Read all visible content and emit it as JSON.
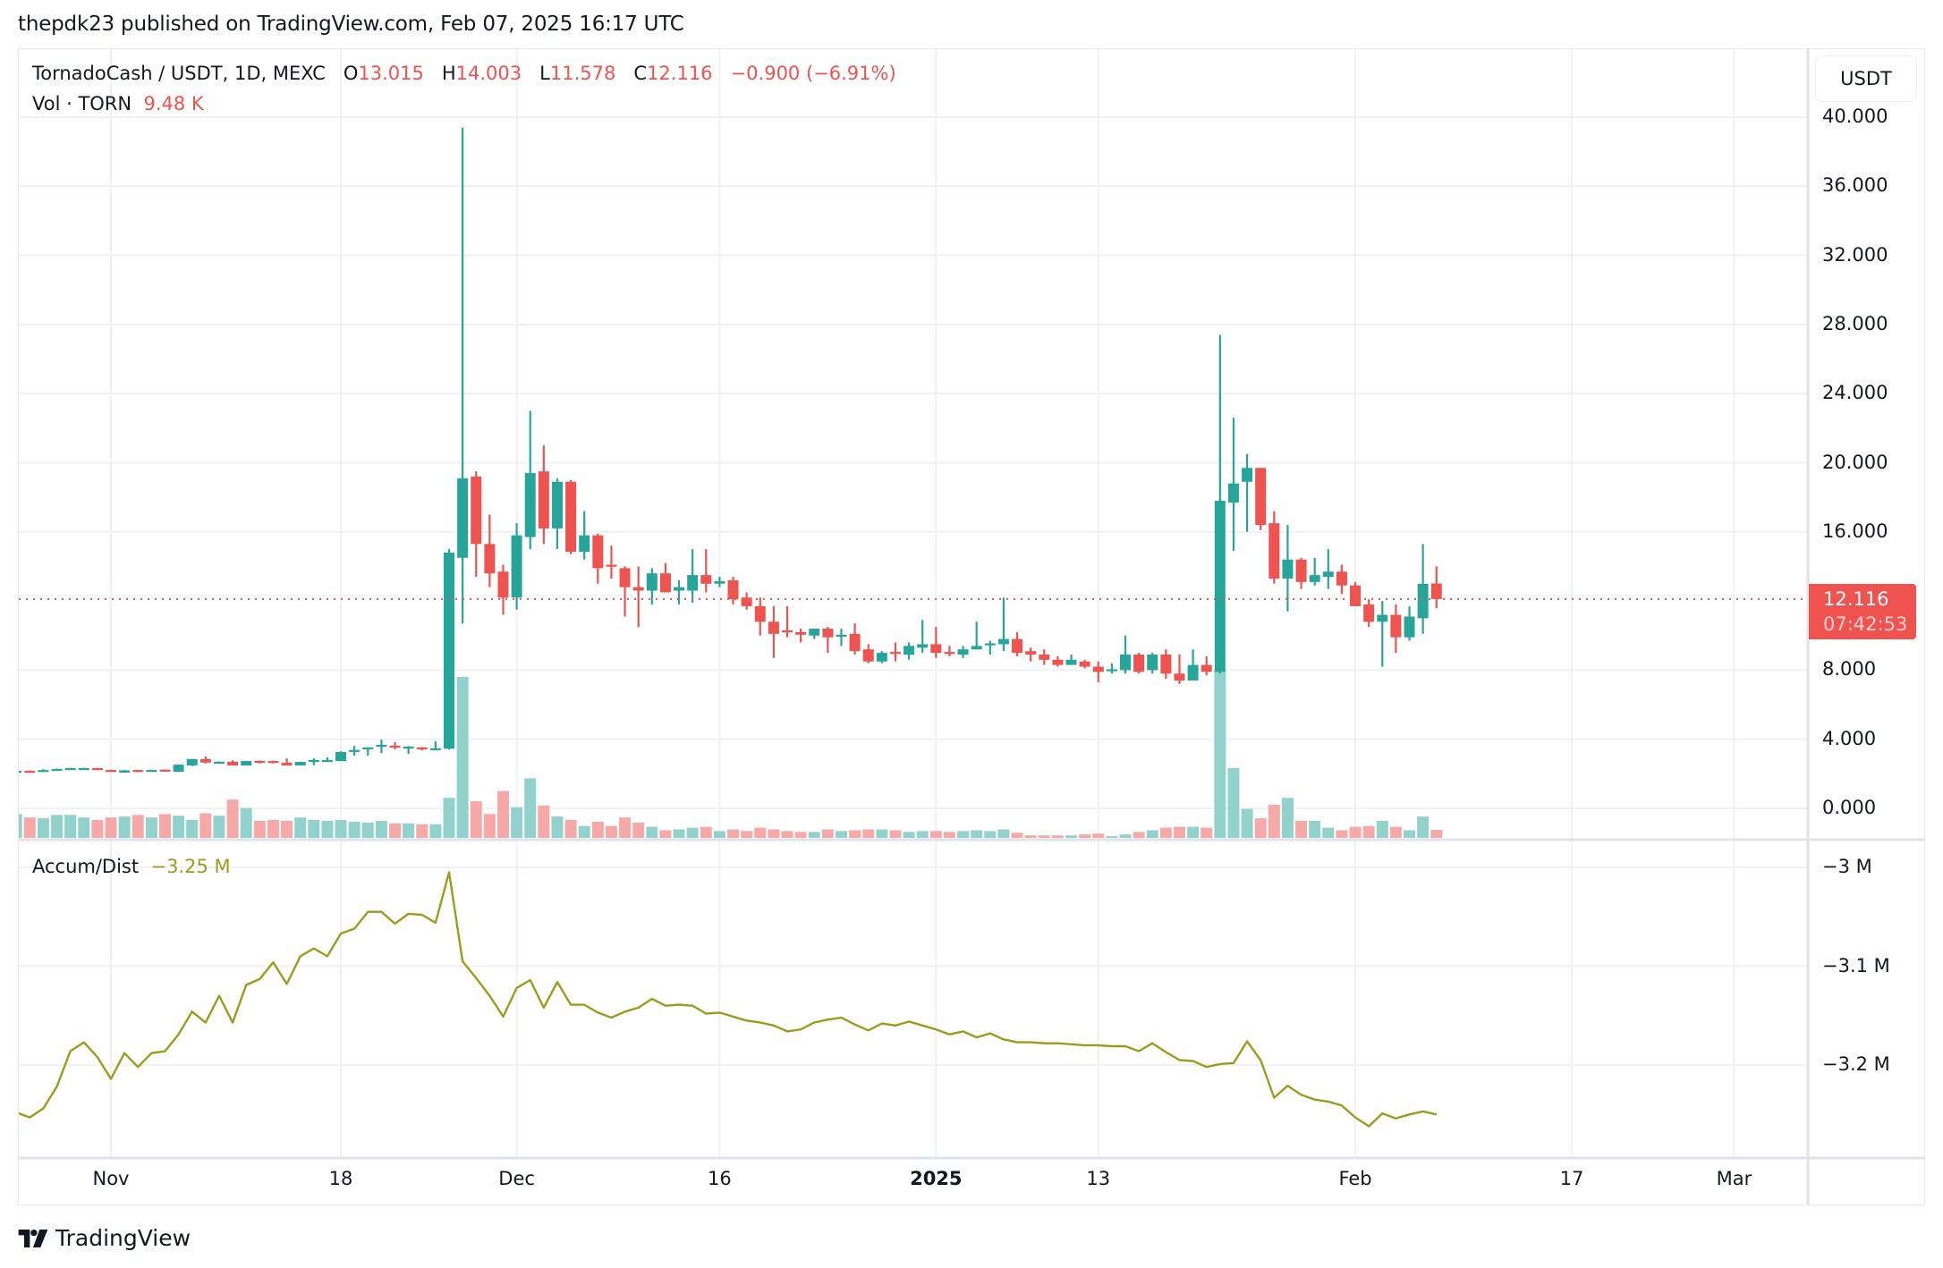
{
  "header": {
    "published": "thepdk23 published on TradingView.com, Feb 07, 2025 16:17 UTC"
  },
  "legend": {
    "symbol": "TornadoCash / USDT, 1D, MEXC",
    "o_label": "O",
    "o": "13.015",
    "h_label": "H",
    "h": "14.003",
    "l_label": "L",
    "l": "11.578",
    "c_label": "C",
    "c": "12.116",
    "change": "−0.900 (−6.91%)",
    "vol_label": "Vol · TORN",
    "vol": "9.48 K"
  },
  "ad_legend": {
    "label": "Accum/Dist",
    "value": "−3.25 M"
  },
  "price_axis": {
    "currency_button": "USDT",
    "ticks": [
      "40.000",
      "36.000",
      "32.000",
      "28.000",
      "24.000",
      "20.000",
      "16.000",
      "8.000",
      "4.000",
      "0.000"
    ],
    "tick_values": [
      40,
      36,
      32,
      28,
      24,
      20,
      16,
      8,
      4,
      0
    ],
    "last_price": "12.116",
    "countdown": "07:42:53"
  },
  "ad_axis": {
    "ticks": [
      "−3 M",
      "−3.1 M",
      "−3.2 M"
    ],
    "tick_values": [
      -3.0,
      -3.1,
      -3.2
    ]
  },
  "time_axis": {
    "labels": [
      {
        "text": "Nov",
        "day": 0,
        "bold": false
      },
      {
        "text": "18",
        "day": 17,
        "bold": false
      },
      {
        "text": "Dec",
        "day": 30,
        "bold": false
      },
      {
        "text": "16",
        "day": 45,
        "bold": false
      },
      {
        "text": "2025",
        "day": 61,
        "bold": true
      },
      {
        "text": "13",
        "day": 73,
        "bold": false
      },
      {
        "text": "Feb",
        "day": 92,
        "bold": false
      },
      {
        "text": "17",
        "day": 108,
        "bold": false
      },
      {
        "text": "Mar",
        "day": 120,
        "bold": false
      }
    ]
  },
  "colors": {
    "up": "#26a69a",
    "down": "#ef5350",
    "vol_up": "#92d2cc",
    "vol_down": "#f7a9a7",
    "ad_line": "#9c9c1c",
    "grid": "#f0f1f3"
  },
  "footer": {
    "brand": "TradingView"
  },
  "chart_data": {
    "type": "candlestick",
    "title": "TornadoCash / USDT, 1D, MEXC",
    "x_start": "2024-10-25",
    "x_end": "2025-02-07",
    "ylim": [
      0,
      40
    ],
    "ylabel": "USDT",
    "last": {
      "open": 13.015,
      "high": 14.003,
      "low": 11.578,
      "close": 12.116,
      "change": -0.9,
      "change_pct": -6.91,
      "volume_k": 9.48
    },
    "ohlc": [
      [
        2.07,
        2.2,
        2.05,
        2.17
      ],
      [
        2.17,
        2.2,
        2.1,
        2.12
      ],
      [
        2.12,
        2.27,
        2.1,
        2.22
      ],
      [
        2.26,
        2.3,
        2.22,
        2.28
      ],
      [
        2.31,
        2.35,
        2.26,
        2.33
      ],
      [
        2.32,
        2.35,
        2.27,
        2.33
      ],
      [
        2.33,
        2.35,
        2.24,
        2.28
      ],
      [
        2.22,
        2.24,
        2.12,
        2.12
      ],
      [
        2.07,
        2.22,
        2.07,
        2.2
      ],
      [
        2.22,
        2.23,
        2.12,
        2.12
      ],
      [
        2.21,
        2.24,
        2.2,
        2.22
      ],
      [
        2.24,
        2.25,
        2.12,
        2.21
      ],
      [
        2.12,
        2.55,
        2.1,
        2.53
      ],
      [
        2.48,
        2.86,
        2.45,
        2.85
      ],
      [
        2.85,
        3.0,
        2.6,
        2.65
      ],
      [
        2.69,
        2.72,
        2.68,
        2.7
      ],
      [
        2.7,
        2.78,
        2.48,
        2.48
      ],
      [
        2.48,
        2.75,
        2.48,
        2.74
      ],
      [
        2.75,
        2.76,
        2.6,
        2.74
      ],
      [
        2.74,
        2.76,
        2.6,
        2.64
      ],
      [
        2.64,
        2.9,
        2.48,
        2.48
      ],
      [
        2.48,
        2.7,
        2.48,
        2.69
      ],
      [
        2.79,
        2.9,
        2.5,
        2.8
      ],
      [
        2.79,
        2.95,
        2.75,
        2.8
      ],
      [
        2.74,
        3.3,
        2.74,
        3.26
      ],
      [
        3.34,
        3.62,
        3.05,
        3.38
      ],
      [
        3.52,
        3.53,
        3.05,
        3.53
      ],
      [
        3.66,
        3.98,
        3.2,
        3.68
      ],
      [
        3.63,
        3.83,
        3.41,
        3.6
      ],
      [
        3.56,
        3.6,
        3.15,
        3.58
      ],
      [
        3.53,
        3.54,
        3.35,
        3.5
      ],
      [
        3.45,
        3.88,
        3.35,
        3.48
      ],
      [
        3.45,
        15.0,
        3.4,
        14.8
      ],
      [
        14.5,
        39.4,
        10.7,
        19.1
      ],
      [
        19.2,
        19.5,
        13.4,
        15.3
      ],
      [
        15.3,
        17.0,
        12.8,
        13.6
      ],
      [
        13.7,
        14.1,
        11.2,
        12.2
      ],
      [
        12.2,
        16.5,
        11.5,
        15.8
      ],
      [
        15.7,
        23.0,
        15.0,
        19.4
      ],
      [
        19.5,
        21.0,
        15.3,
        16.2
      ],
      [
        16.2,
        19.1,
        15.0,
        18.9
      ],
      [
        18.9,
        19.0,
        14.7,
        14.85
      ],
      [
        14.85,
        17.2,
        14.4,
        15.8
      ],
      [
        15.8,
        15.9,
        13.0,
        13.9
      ],
      [
        14.1,
        15.2,
        13.3,
        14.0
      ],
      [
        13.9,
        14.0,
        11.1,
        12.8
      ],
      [
        12.8,
        14.0,
        10.5,
        12.6
      ],
      [
        12.6,
        13.9,
        11.8,
        13.6
      ],
      [
        13.6,
        14.2,
        12.5,
        12.5
      ],
      [
        12.6,
        13.2,
        11.8,
        12.8
      ],
      [
        12.6,
        15.0,
        11.9,
        13.5
      ],
      [
        13.5,
        15.0,
        12.5,
        13.0
      ],
      [
        13.0,
        13.4,
        12.8,
        13.15
      ],
      [
        13.2,
        13.4,
        11.8,
        12.1
      ],
      [
        12.2,
        12.5,
        11.5,
        11.7
      ],
      [
        11.7,
        12.2,
        10.0,
        10.8
      ],
      [
        10.8,
        11.7,
        8.7,
        10.1
      ],
      [
        10.3,
        11.7,
        9.9,
        10.2
      ],
      [
        10.2,
        10.4,
        9.6,
        10.05
      ],
      [
        10.0,
        10.4,
        9.8,
        10.4
      ],
      [
        10.4,
        10.5,
        9.0,
        9.9
      ],
      [
        9.95,
        10.4,
        9.4,
        10.05
      ],
      [
        10.1,
        10.7,
        8.9,
        9.1
      ],
      [
        9.2,
        9.5,
        8.4,
        8.5
      ],
      [
        8.5,
        9.1,
        8.4,
        9.0
      ],
      [
        9.05,
        9.6,
        8.5,
        9.0
      ],
      [
        8.9,
        9.6,
        8.6,
        9.4
      ],
      [
        9.3,
        10.9,
        9.0,
        9.5
      ],
      [
        9.5,
        10.5,
        8.7,
        9.0
      ],
      [
        9.05,
        9.4,
        8.8,
        8.95
      ],
      [
        8.9,
        9.4,
        8.7,
        9.2
      ],
      [
        9.2,
        10.8,
        9.2,
        9.4
      ],
      [
        9.45,
        9.7,
        8.9,
        9.55
      ],
      [
        9.5,
        12.2,
        9.1,
        9.8
      ],
      [
        9.8,
        10.2,
        8.8,
        9.0
      ],
      [
        9.1,
        9.3,
        8.5,
        8.9
      ],
      [
        8.9,
        9.2,
        8.3,
        8.6
      ],
      [
        8.6,
        8.8,
        8.2,
        8.3
      ],
      [
        8.3,
        8.9,
        8.3,
        8.6
      ],
      [
        8.5,
        8.6,
        8.1,
        8.2
      ],
      [
        8.2,
        8.5,
        7.3,
        7.9
      ],
      [
        7.95,
        8.4,
        7.8,
        8.05
      ],
      [
        8.0,
        10.0,
        7.8,
        8.9
      ],
      [
        8.9,
        9.0,
        7.8,
        7.9
      ],
      [
        8.0,
        9.0,
        7.8,
        8.9
      ],
      [
        8.9,
        9.2,
        7.5,
        7.8
      ],
      [
        7.8,
        8.9,
        7.2,
        7.4
      ],
      [
        7.4,
        9.2,
        7.4,
        8.3
      ],
      [
        8.3,
        8.8,
        7.7,
        7.9
      ],
      [
        7.9,
        27.4,
        7.8,
        17.8
      ],
      [
        17.7,
        22.6,
        14.9,
        18.8
      ],
      [
        18.9,
        20.5,
        16.0,
        19.7
      ],
      [
        19.7,
        19.7,
        16.1,
        16.4
      ],
      [
        16.5,
        17.2,
        13.0,
        13.3
      ],
      [
        13.3,
        16.4,
        11.4,
        14.4
      ],
      [
        14.4,
        14.5,
        12.7,
        13.1
      ],
      [
        13.1,
        14.5,
        12.9,
        13.5
      ],
      [
        13.4,
        15.0,
        12.7,
        13.7
      ],
      [
        13.7,
        14.1,
        12.4,
        12.9
      ],
      [
        12.9,
        13.1,
        11.7,
        11.7
      ],
      [
        11.8,
        12.1,
        10.5,
        10.8
      ],
      [
        10.8,
        12.0,
        8.2,
        11.2
      ],
      [
        11.2,
        11.8,
        9.0,
        9.9
      ],
      [
        9.9,
        11.7,
        9.7,
        11.1
      ],
      [
        11.0,
        15.3,
        10.1,
        13.0
      ],
      [
        13.015,
        14.003,
        11.578,
        12.116
      ]
    ],
    "volume_k": [
      28,
      24,
      23,
      27,
      27,
      24,
      21,
      24,
      25,
      27,
      24,
      28,
      26,
      21,
      29,
      26,
      45,
      35,
      20,
      21,
      20,
      24,
      21,
      20,
      21,
      19,
      18,
      20,
      17,
      17,
      16,
      16,
      47,
      189,
      43,
      28,
      55,
      36,
      70,
      38,
      25,
      21,
      14,
      19,
      14,
      24,
      18,
      13,
      9,
      10,
      12,
      13,
      8,
      10,
      8,
      12,
      10,
      8,
      7,
      7,
      10,
      8,
      9,
      10,
      10,
      9,
      7,
      8,
      8,
      7,
      8,
      9,
      8,
      10,
      6,
      3,
      3,
      3,
      3,
      4,
      5,
      2,
      4,
      7,
      9,
      12,
      13,
      13,
      12,
      197,
      82,
      34,
      23,
      39,
      47,
      20,
      20,
      12,
      9,
      13,
      14,
      20,
      13,
      9,
      25,
      9.48
    ],
    "ad_series_m": {
      "note": "Accumulation/Distribution values (millions), one per day from 2024-10-25",
      "values": [
        -3.248,
        -3.253,
        -3.244,
        -3.222,
        -3.186,
        -3.177,
        -3.192,
        -3.214,
        -3.188,
        -3.202,
        -3.188,
        -3.186,
        -3.169,
        -3.146,
        -3.157,
        -3.13,
        -3.157,
        -3.119,
        -3.113,
        -3.096,
        -3.118,
        -3.09,
        -3.082,
        -3.09,
        -3.067,
        -3.062,
        -3.045,
        -3.045,
        -3.057,
        -3.047,
        -3.048,
        -3.056,
        -3.005,
        -3.095,
        -3.112,
        -3.13,
        -3.151,
        -3.122,
        -3.114,
        -3.142,
        -3.116,
        -3.139,
        -3.139,
        -3.147,
        -3.152,
        -3.146,
        -3.142,
        -3.133,
        -3.14,
        -3.139,
        -3.14,
        -3.148,
        -3.147,
        -3.151,
        -3.155,
        -3.157,
        -3.16,
        -3.166,
        -3.164,
        -3.157,
        -3.154,
        -3.152,
        -3.159,
        -3.165,
        -3.158,
        -3.16,
        -3.156,
        -3.16,
        -3.164,
        -3.169,
        -3.166,
        -3.172,
        -3.168,
        -3.174,
        -3.177,
        -3.177,
        -3.178,
        -3.178,
        -3.179,
        -3.18,
        -3.18,
        -3.181,
        -3.181,
        -3.186,
        -3.178,
        -3.187,
        -3.195,
        -3.196,
        -3.202,
        -3.199,
        -3.198,
        -3.176,
        -3.195,
        -3.233,
        -3.221,
        -3.23,
        -3.235,
        -3.237,
        -3.241,
        -3.253,
        -3.262,
        -3.249,
        -3.254,
        -3.25,
        -3.247,
        -3.25
      ],
      "ylim": [
        -3.26,
        -2.99
      ]
    }
  }
}
